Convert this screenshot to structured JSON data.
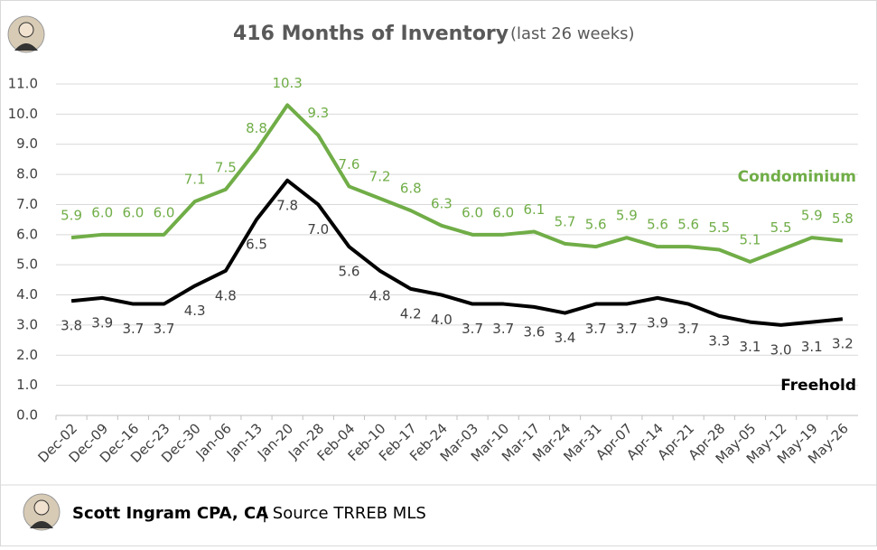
{
  "chart_data": {
    "type": "line",
    "title": "416 Months of Inventory",
    "subtitle": "(last 26 weeks)",
    "footer_author": "Scott Ingram CPA, CA",
    "footer_source": "| Source TRREB MLS",
    "categories": [
      "Dec-02",
      "Dec-09",
      "Dec-16",
      "Dec-23",
      "Dec-30",
      "Jan-06",
      "Jan-13",
      "Jan-20",
      "Jan-28",
      "Feb-04",
      "Feb-10",
      "Feb-17",
      "Feb-24",
      "Mar-03",
      "Mar-10",
      "Mar-17",
      "Mar-24",
      "Mar-31",
      "Apr-07",
      "Apr-14",
      "Apr-21",
      "Apr-28",
      "May-05",
      "May-12",
      "May-19",
      "May-26"
    ],
    "series": [
      {
        "name": "Condominium",
        "color": "#70ad47",
        "values": [
          5.9,
          6,
          6,
          6,
          7.1,
          7.5,
          8.8,
          10.3,
          9.3,
          7.6,
          7.2,
          6.8,
          6.3,
          6,
          6,
          6.1,
          5.7,
          5.6,
          5.9,
          5.6,
          5.6,
          5.5,
          5.1,
          5.5,
          5.9,
          5.8
        ],
        "value_labels": [
          "5.9",
          "6.0",
          "6.0",
          "6.0",
          "7.1",
          "7.5",
          "8.8",
          "10.3",
          "9.3",
          "7.6",
          "7.2",
          "6.8",
          "6.3",
          "6.0",
          "6.0",
          "6.1",
          "5.7",
          "5.6",
          "5.9",
          "5.6",
          "5.6",
          "5.5",
          "5.1",
          "5.5",
          "5.9",
          "5.8"
        ]
      },
      {
        "name": "Freehold",
        "color": "#000000",
        "values": [
          3.8,
          3.9,
          3.7,
          3.7,
          4.3,
          4.8,
          6.5,
          7.8,
          7,
          5.6,
          4.8,
          4.2,
          4,
          3.7,
          3.7,
          3.6,
          3.4,
          3.7,
          3.7,
          3.9,
          3.7,
          3.3,
          3.1,
          3,
          3.1,
          3.2
        ],
        "value_labels": [
          "3.8",
          "3.9",
          "3.7",
          "3.7",
          "4.3",
          "4.8",
          "6.5",
          "7.8",
          "7.0",
          "5.6",
          "4.8",
          "4.2",
          "4.0",
          "3.7",
          "3.7",
          "3.6",
          "3.4",
          "3.7",
          "3.7",
          "3.9",
          "3.7",
          "3.3",
          "3.1",
          "3.0",
          "3.1",
          "3.2"
        ]
      }
    ],
    "ylim": [
      0,
      11
    ],
    "yticks": [
      {
        "value": 0,
        "label": "0.0"
      },
      {
        "value": 1,
        "label": "1.0"
      },
      {
        "value": 2,
        "label": "2.0"
      },
      {
        "value": 3,
        "label": "3.0"
      },
      {
        "value": 4,
        "label": "4.0"
      },
      {
        "value": 5,
        "label": "5.0"
      },
      {
        "value": 6,
        "label": "6.0"
      },
      {
        "value": 7,
        "label": "7.0"
      },
      {
        "value": 8,
        "label": "8.0"
      },
      {
        "value": 9,
        "label": "9.0"
      },
      {
        "value": 10,
        "label": "10.0"
      },
      {
        "value": 11,
        "label": "11.0"
      }
    ],
    "grid": true
  }
}
